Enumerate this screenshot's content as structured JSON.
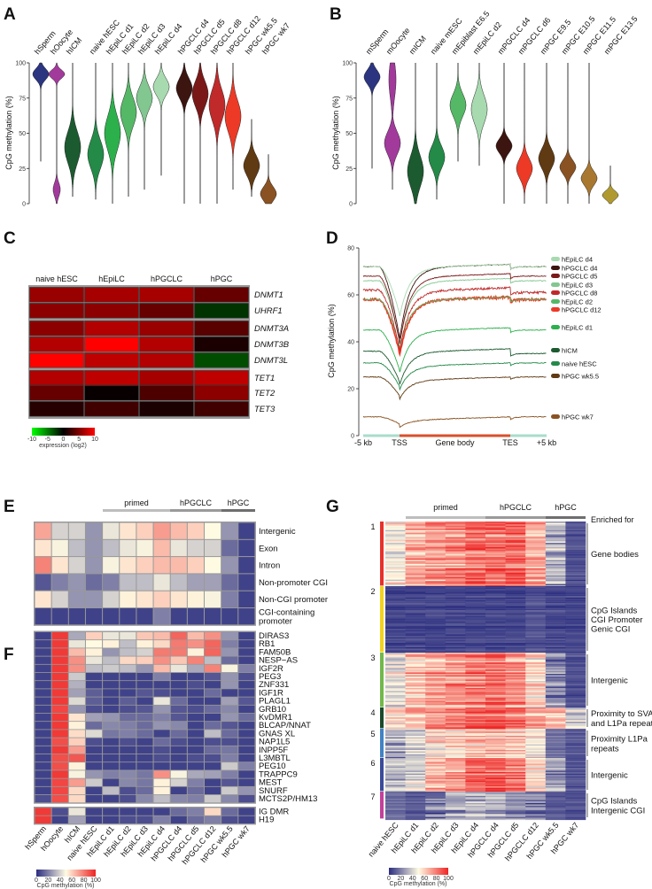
{
  "panel_labels": [
    "A",
    "B",
    "C",
    "D",
    "E",
    "F",
    "G"
  ],
  "chart_data": [
    {
      "panel": "A",
      "type": "violin",
      "ylabel": "CpG methylation (%)",
      "ylim": [
        0,
        100
      ],
      "yticks": [
        0,
        25,
        50,
        75,
        100
      ],
      "categories": [
        "hSperm",
        "hOocyte",
        "hICM",
        "naive hESC",
        "hEpiLC d1",
        "hEpiLC d2",
        "hEpiLC d3",
        "hEpiLC d4",
        "hPGCLC d4",
        "hPGCLC d5",
        "hPGCLC d8",
        "hPGCLC d12",
        "hPGC wk5.5",
        "hPGC wk7"
      ],
      "violins": [
        {
          "mode": 92,
          "spread": 4,
          "min": 30,
          "max": 100,
          "color": "#2b3580"
        },
        {
          "mode": 92,
          "spread": 3,
          "second_mode": 10,
          "min": 0,
          "max": 100,
          "color": "#a23a9c"
        },
        {
          "mode": 40,
          "spread": 11,
          "min": 5,
          "max": 100,
          "color": "#1c5a30"
        },
        {
          "mode": 35,
          "spread": 10,
          "min": 3,
          "max": 100,
          "color": "#238a48"
        },
        {
          "mode": 50,
          "spread": 12,
          "min": 0,
          "max": 100,
          "color": "#2cb04c"
        },
        {
          "mode": 65,
          "spread": 10,
          "min": 5,
          "max": 100,
          "color": "#55b866"
        },
        {
          "mode": 75,
          "spread": 8,
          "min": 10,
          "max": 100,
          "color": "#82c690"
        },
        {
          "mode": 83,
          "spread": 6,
          "min": 20,
          "max": 100,
          "color": "#a8dab0"
        },
        {
          "mode": 82,
          "spread": 7,
          "min": 0,
          "max": 100,
          "color": "#3c1410"
        },
        {
          "mode": 78,
          "spread": 9,
          "min": 0,
          "max": 100,
          "color": "#7a1818"
        },
        {
          "mode": 70,
          "spread": 11,
          "min": 0,
          "max": 100,
          "color": "#c02a2a"
        },
        {
          "mode": 62,
          "spread": 11,
          "min": 10,
          "max": 100,
          "color": "#ec3a26"
        },
        {
          "mode": 27,
          "spread": 7,
          "min": 5,
          "max": 60,
          "color": "#603a12"
        },
        {
          "mode": 7,
          "spread": 5,
          "min": 0,
          "max": 35,
          "color": "#8a5222"
        }
      ]
    },
    {
      "panel": "B",
      "type": "violin",
      "ylabel": "CpG methylation (%)",
      "ylim": [
        0,
        100
      ],
      "yticks": [
        0,
        25,
        50,
        75,
        100
      ],
      "categories": [
        "mSperm",
        "mOocyte",
        "mICM",
        "naive mESC",
        "mEpiblast E6.5",
        "mEpiLC d2",
        "mPGCLC d4",
        "mPGCLC d6",
        "mPGC E9.5",
        "mPGC E10.5",
        "mPGC E11.5",
        "mPGC E13.5"
      ],
      "violins": [
        {
          "mode": 90,
          "spread": 5,
          "min": 25,
          "max": 100,
          "color": "#2b3580"
        },
        {
          "mode": 43,
          "spread": 8,
          "second_mode": 88,
          "min": 10,
          "max": 100,
          "color": "#a23a9c"
        },
        {
          "mode": 23,
          "spread": 11,
          "min": 0,
          "max": 100,
          "color": "#1c5a30"
        },
        {
          "mode": 33,
          "spread": 8,
          "min": 3,
          "max": 100,
          "color": "#238a48"
        },
        {
          "mode": 70,
          "spread": 8,
          "min": 30,
          "max": 100,
          "color": "#55b866"
        },
        {
          "mode": 67,
          "spread": 10,
          "min": 27,
          "max": 100,
          "color": "#a8dab0"
        },
        {
          "mode": 41,
          "spread": 5,
          "min": 0,
          "max": 100,
          "color": "#3c1410"
        },
        {
          "mode": 25,
          "spread": 7,
          "min": 0,
          "max": 100,
          "color": "#ec3a26"
        },
        {
          "mode": 32,
          "spread": 7,
          "min": 0,
          "max": 100,
          "color": "#603a12"
        },
        {
          "mode": 26,
          "spread": 5,
          "min": 0,
          "max": 100,
          "color": "#8a5222"
        },
        {
          "mode": 18,
          "spread": 5,
          "min": 0,
          "max": 100,
          "color": "#a87830"
        },
        {
          "mode": 6,
          "spread": 3,
          "min": 0,
          "max": 27,
          "color": "#b09a30"
        }
      ]
    },
    {
      "panel": "C",
      "type": "heatmap",
      "columns": [
        "naive hESC",
        "hEpiLC",
        "hPGCLC",
        "hPGC"
      ],
      "row_groups": [
        [
          "DNMT1",
          "UHRF1"
        ],
        [
          "DNMT3A",
          "DNMT3B",
          "DNMT3L"
        ],
        [
          "TET1",
          "TET2",
          "TET3"
        ]
      ],
      "values": [
        [
          6,
          6.5,
          6.5,
          4
        ],
        [
          5.5,
          5.5,
          4,
          -2
        ],
        [
          5.5,
          7,
          6,
          3.5
        ],
        [
          7,
          10,
          7,
          1
        ],
        [
          10,
          7.5,
          7,
          -3
        ],
        [
          7,
          7.5,
          6.5,
          7.5
        ],
        [
          4,
          0.3,
          3,
          5.5
        ],
        [
          1.5,
          2.5,
          1,
          2.5
        ]
      ],
      "colorbar": {
        "label": "expression (log2)",
        "ticks": [
          "-10",
          "-5",
          "0",
          "5",
          "10"
        ],
        "range": [
          -10,
          10
        ],
        "colors": [
          "#00ff00",
          "#000000",
          "#ff0000"
        ]
      }
    },
    {
      "panel": "D",
      "type": "line",
      "ylabel": "CpG methylation (%)",
      "ylim": [
        0,
        80
      ],
      "yticks": [
        0,
        20,
        40,
        60,
        80
      ],
      "xticks": [
        "-5 kb",
        "TSS",
        "Gene body",
        "TES",
        "+5 kb"
      ],
      "series": [
        {
          "name": "hEpiLC d4",
          "upstream": 72,
          "dip": 52,
          "body": 73,
          "downstream": 72,
          "color": "#a8dab0"
        },
        {
          "name": "hPGCLC d4",
          "upstream": 72,
          "dip": 42,
          "body": 73,
          "downstream": 72,
          "color": "#3c1410"
        },
        {
          "name": "hPGCLC d5",
          "upstream": 68,
          "dip": 40,
          "body": 69,
          "downstream": 68,
          "color": "#7a1818"
        },
        {
          "name": "hEpiLC d3",
          "upstream": 66,
          "dip": 40,
          "body": 67,
          "downstream": 66,
          "color": "#82c690"
        },
        {
          "name": "hPGCLC d8",
          "upstream": 62,
          "dip": 37,
          "body": 63,
          "downstream": 61,
          "color": "#c02a2a"
        },
        {
          "name": "hEpiLC d2",
          "upstream": 58,
          "dip": 38,
          "body": 59,
          "downstream": 58,
          "color": "#55b866"
        },
        {
          "name": "hPGCLC d12",
          "upstream": 58,
          "dip": 35,
          "body": 59,
          "downstream": 58,
          "color": "#ec3a26"
        },
        {
          "name": "hEpiLC d1",
          "upstream": 45,
          "dip": 28,
          "body": 46,
          "downstream": 45,
          "color": "#2cb04c"
        },
        {
          "name": "hICM",
          "upstream": 36,
          "dip": 23,
          "body": 37,
          "downstream": 35,
          "color": "#1c5a30"
        },
        {
          "name": "naive hESC",
          "upstream": 31,
          "dip": 21,
          "body": 31,
          "downstream": 31,
          "color": "#238a48"
        },
        {
          "name": "hPGC wk5.5",
          "upstream": 25,
          "dip": 17,
          "body": 25,
          "downstream": 25,
          "color": "#603a12"
        },
        {
          "name": "hPGC wk7",
          "upstream": 8,
          "dip": 5,
          "body": 8,
          "downstream": 8,
          "color": "#8a5222"
        }
      ],
      "gene_track_colors": {
        "flank": "#a8dccc",
        "body": "#d9502a"
      }
    },
    {
      "panel": "E",
      "type": "heatmap",
      "groups": [
        "primed",
        "hPGCLC",
        "hPGC"
      ],
      "rows": [
        "Intergenic",
        "Exon",
        "Intron",
        "Non-promoter CGI",
        "Non-CGI promoter",
        "CGI-containing promoter"
      ],
      "row_labels_display": [
        [
          "Intergenic"
        ],
        [
          "Exon"
        ],
        [
          "Intron"
        ],
        [
          "Non-promoter CGI"
        ],
        [
          "Non-CGI promoter"
        ],
        [
          "CGI-containing",
          "promoter"
        ]
      ],
      "values": [
        [
          70,
          40,
          40,
          25,
          45,
          55,
          60,
          72,
          65,
          60,
          50,
          25,
          5
        ],
        [
          55,
          48,
          35,
          25,
          35,
          45,
          48,
          65,
          45,
          40,
          40,
          15,
          5
        ],
        [
          78,
          55,
          40,
          25,
          48,
          55,
          60,
          65,
          65,
          60,
          50,
          25,
          5
        ],
        [
          10,
          20,
          25,
          15,
          20,
          35,
          35,
          45,
          35,
          28,
          28,
          15,
          5
        ],
        [
          55,
          40,
          25,
          25,
          40,
          52,
          55,
          60,
          55,
          52,
          48,
          20,
          5
        ],
        [
          5,
          5,
          5,
          5,
          5,
          5,
          5,
          20,
          5,
          5,
          5,
          5,
          5
        ]
      ]
    },
    {
      "panel": "F",
      "type": "heatmap",
      "columns": [
        "hSperm",
        "hOocyte",
        "hICM",
        "naive hESC",
        "hEpiLC d1",
        "hEpiLC d2",
        "hEpiLC d3",
        "hEpiLC d4",
        "hPGCLC d4",
        "hPGCLC d5",
        "hPGCLC d12",
        "hPGC wk5.5",
        "hPGC wk7"
      ],
      "row_groups": [
        [
          "DIRAS3",
          "RB1",
          "FAM50B",
          "NESP−AS",
          "IGF2R",
          "PEG3",
          "ZNF331",
          "IGF1R",
          "PLAGL1",
          "GRB10",
          "KvDMR1",
          "BLCAP/NNAT",
          "GNAS XL",
          "NAP1L5",
          "INPP5F",
          "L3MBTL",
          "PEG10",
          "TRAPPC9",
          "MEST",
          "SNURF",
          "MCTS2P/HM13"
        ],
        [
          "IG DMR",
          "H19"
        ]
      ],
      "values": [
        [
          5,
          95,
          30,
          60,
          45,
          45,
          62,
          65,
          85,
          65,
          75,
          25,
          5
        ],
        [
          5,
          95,
          45,
          50,
          52,
          35,
          52,
          58,
          80,
          75,
          85,
          20,
          5
        ],
        [
          5,
          95,
          65,
          52,
          25,
          35,
          40,
          80,
          80,
          52,
          85,
          25,
          5
        ],
        [
          5,
          95,
          75,
          45,
          35,
          58,
          60,
          75,
          62,
          78,
          35,
          15,
          5
        ],
        [
          5,
          95,
          75,
          35,
          38,
          35,
          25,
          65,
          45,
          30,
          78,
          48,
          20
        ],
        [
          5,
          95,
          38,
          5,
          5,
          5,
          5,
          20,
          5,
          5,
          10,
          25,
          8
        ],
        [
          5,
          95,
          32,
          5,
          5,
          5,
          5,
          5,
          5,
          8,
          5,
          25,
          5
        ],
        [
          5,
          95,
          28,
          12,
          5,
          5,
          10,
          8,
          5,
          5,
          15,
          5,
          5
        ],
        [
          5,
          95,
          42,
          12,
          5,
          12,
          5,
          45,
          15,
          5,
          5,
          28,
          10
        ],
        [
          5,
          92,
          25,
          8,
          5,
          8,
          10,
          25,
          10,
          8,
          15,
          22,
          5
        ],
        [
          5,
          95,
          55,
          28,
          25,
          15,
          15,
          20,
          10,
          5,
          5,
          25,
          15
        ],
        [
          5,
          95,
          52,
          15,
          22,
          20,
          15,
          25,
          22,
          5,
          15,
          10,
          5
        ],
        [
          5,
          95,
          57,
          42,
          18,
          20,
          15,
          5,
          15,
          5,
          35,
          15,
          5
        ],
        [
          5,
          90,
          60,
          8,
          5,
          8,
          5,
          15,
          8,
          5,
          8,
          8,
          5
        ],
        [
          5,
          95,
          72,
          5,
          5,
          5,
          5,
          8,
          5,
          5,
          15,
          18,
          5
        ],
        [
          5,
          90,
          88,
          5,
          5,
          5,
          5,
          8,
          5,
          8,
          8,
          20,
          5
        ],
        [
          5,
          90,
          52,
          5,
          5,
          5,
          5,
          5,
          5,
          5,
          5,
          38,
          20
        ],
        [
          5,
          95,
          48,
          25,
          20,
          22,
          18,
          75,
          48,
          30,
          28,
          20,
          5
        ],
        [
          5,
          92,
          72,
          38,
          5,
          22,
          18,
          52,
          40,
          20,
          5,
          10,
          5
        ],
        [
          5,
          92,
          58,
          5,
          35,
          8,
          15,
          52,
          5,
          15,
          5,
          38,
          25
        ],
        [
          8,
          90,
          58,
          5,
          5,
          8,
          22,
          35,
          22,
          20,
          38,
          22,
          8
        ],
        [
          95,
          8,
          45,
          5,
          5,
          5,
          5,
          5,
          15,
          20,
          58,
          15,
          5
        ],
        [
          95,
          5,
          28,
          5,
          5,
          8,
          8,
          20,
          5,
          15,
          20,
          8,
          5
        ]
      ],
      "colorbar": {
        "label": "CpG methylation (%)",
        "ticks": [
          "0",
          "20",
          "40",
          "60",
          "80",
          "100"
        ],
        "range": [
          0,
          100
        ],
        "colors": [
          "#2b2d7f",
          "#fffbe3",
          "#ee2424"
        ]
      }
    },
    {
      "panel": "G",
      "type": "heatmap",
      "groups": [
        "primed",
        "hPGCLC",
        "hPGC"
      ],
      "enriched_header": "Enriched for",
      "columns": [
        "naive hESC",
        "hEpiLC d1",
        "hEpiLC d2",
        "hEpiLC d3",
        "hEpiLC d4",
        "hPGCLC d4",
        "hPGCLC d5",
        "hPGCLC d12",
        "hPGC wk5.5",
        "hPGC wk7"
      ],
      "clusters": [
        {
          "id": "1",
          "color": "#e8302a",
          "annotation": [
            "Gene bodies"
          ],
          "mean_values": [
            50,
            70,
            75,
            78,
            85,
            85,
            88,
            72,
            35,
            8
          ]
        },
        {
          "id": "2",
          "color": "#f2d21e",
          "annotation": [
            "CpG Islands",
            "CGI Promoter",
            "Genic CGI"
          ],
          "mean_values": [
            5,
            5,
            5,
            5,
            5,
            5,
            5,
            8,
            5,
            5
          ]
        },
        {
          "id": "3",
          "color": "#72b84a",
          "annotation": [
            "Intergenic"
          ],
          "mean_values": [
            45,
            65,
            72,
            78,
            82,
            85,
            78,
            60,
            25,
            8
          ]
        },
        {
          "id": "4",
          "color": "#1a4a2a",
          "annotation": [
            "Proximity to SVA",
            "and L1Pa repeats"
          ],
          "mean_values": [
            55,
            65,
            72,
            78,
            85,
            88,
            82,
            70,
            65,
            35
          ]
        },
        {
          "id": "5",
          "color": "#4282c2",
          "annotation": [
            "Proximity L1Pa",
            "repeats"
          ],
          "mean_values": [
            25,
            35,
            50,
            55,
            60,
            62,
            55,
            45,
            15,
            8
          ]
        },
        {
          "id": "6",
          "color": "#3c4a9a",
          "annotation": [
            "Intergenic"
          ],
          "mean_values": [
            30,
            40,
            65,
            70,
            85,
            88,
            80,
            55,
            25,
            8
          ]
        },
        {
          "id": "7",
          "color": "#c2409a",
          "annotation": [
            "CpG Islands",
            "Intergenic CGI"
          ],
          "mean_values": [
            15,
            10,
            20,
            30,
            35,
            35,
            25,
            20,
            10,
            8
          ]
        }
      ],
      "colorbar": {
        "label": "CpG methylation (%)",
        "ticks": [
          "0",
          "20",
          "40",
          "60",
          "80",
          "100"
        ],
        "range": [
          0,
          100
        ],
        "colors": [
          "#2b2d7f",
          "#fffbe3",
          "#ee2424"
        ]
      }
    }
  ]
}
